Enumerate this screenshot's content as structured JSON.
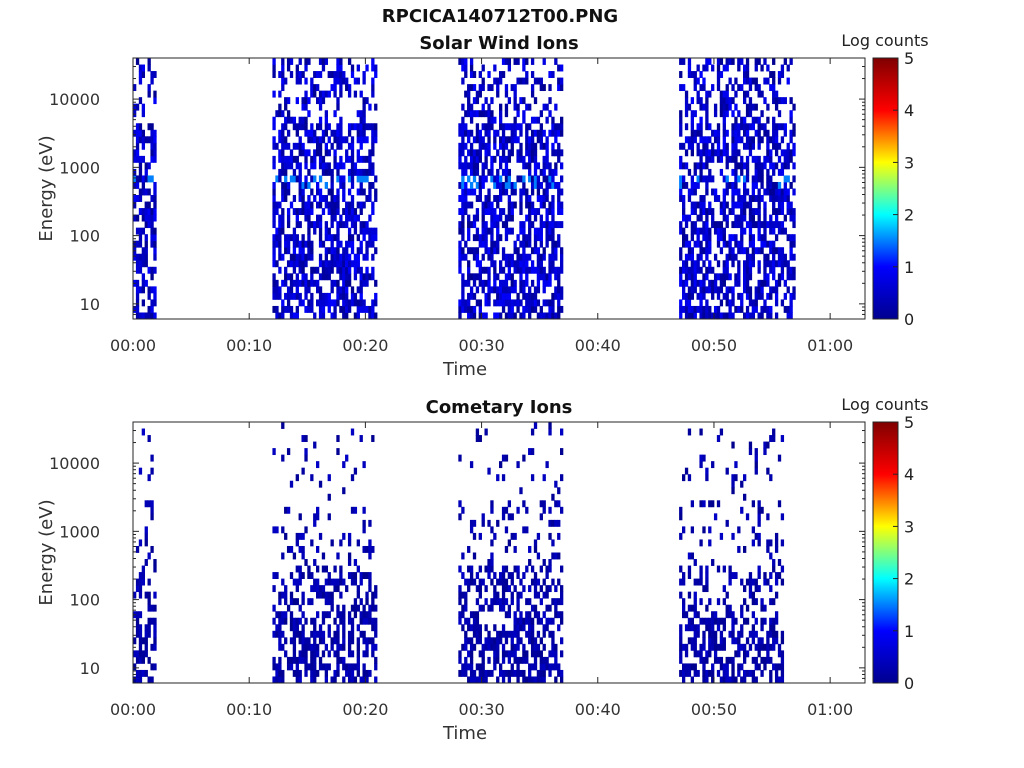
{
  "figure_title": "RPCICA140712T00.PNG",
  "colormap": [
    "#00008f",
    "#0000ff",
    "#00ffff",
    "#ffff00",
    "#ff0000",
    "#800000"
  ],
  "chart_data": [
    {
      "type": "heatmap",
      "title": "Solar Wind Ions",
      "xlabel": "Time",
      "ylabel": "Energy (eV)",
      "y_scale": "log",
      "xlim": [
        "00:00",
        "01:03"
      ],
      "ylim": [
        6,
        40000
      ],
      "x_ticks": [
        "00:00",
        "00:10",
        "00:20",
        "00:30",
        "00:40",
        "00:50",
        "01:00"
      ],
      "y_ticks": [
        "10",
        "100",
        "1000",
        "10000"
      ],
      "colorbar": {
        "label": "Log counts",
        "range": [
          0,
          5
        ],
        "ticks": [
          "0",
          "1",
          "2",
          "3",
          "4",
          "5"
        ]
      },
      "data_intervals": [
        [
          "00:00",
          "00:02"
        ],
        [
          "00:12",
          "00:21"
        ],
        [
          "00:28",
          "00:37"
        ],
        [
          "00:47",
          "00:57"
        ]
      ],
      "typical_log_counts": [
        0,
        1
      ],
      "peak_log_counts": 1.5,
      "peak_energy_ev": 600
    },
    {
      "type": "heatmap",
      "title": "Cometary Ions",
      "xlabel": "Time",
      "ylabel": "Energy (eV)",
      "y_scale": "log",
      "xlim": [
        "00:00",
        "01:03"
      ],
      "ylim": [
        6,
        40000
      ],
      "x_ticks": [
        "00:00",
        "00:10",
        "00:20",
        "00:30",
        "00:40",
        "00:50",
        "01:00"
      ],
      "y_ticks": [
        "10",
        "100",
        "1000",
        "10000"
      ],
      "colorbar": {
        "label": "Log counts",
        "range": [
          0,
          5
        ],
        "ticks": [
          "0",
          "1",
          "2",
          "3",
          "4",
          "5"
        ]
      },
      "data_intervals": [
        [
          "00:00",
          "00:02"
        ],
        [
          "00:12",
          "00:21"
        ],
        [
          "00:28",
          "00:37"
        ],
        [
          "00:47",
          "00:56"
        ]
      ],
      "typical_log_counts": [
        0,
        0.5
      ]
    }
  ]
}
